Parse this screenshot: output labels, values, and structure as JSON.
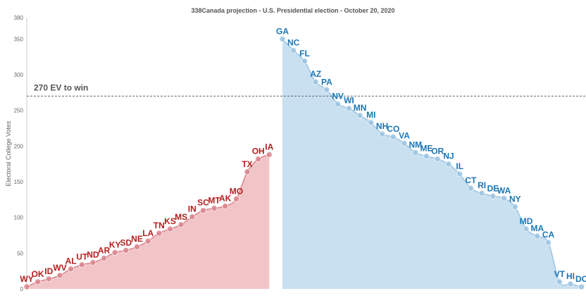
{
  "chart_data": {
    "type": "area",
    "title": "338Canada projection - U.S. Presidential election - October 20, 2020",
    "ylabel": "Electoral College Votes",
    "ylim": [
      0,
      380
    ],
    "yticks": [
      0,
      50,
      100,
      150,
      200,
      250,
      300,
      350
    ],
    "grid": false,
    "threshold": {
      "value": 270,
      "label": "270 EV to win"
    },
    "colors": {
      "rep_line": "#d9848c",
      "rep_fill": "#f1c5c8",
      "rep_label": "#b41e1e",
      "dem_line": "#9cc4e2",
      "dem_fill": "#c9e0f0",
      "dem_label": "#1976b6",
      "threshold": "#666666"
    },
    "series": [
      {
        "party": "republican",
        "states": [
          "WY",
          "OK",
          "ID",
          "WV",
          "AL",
          "UT",
          "ND",
          "AR",
          "KY",
          "SD",
          "NE",
          "LA",
          "TN",
          "KS",
          "MS",
          "IN",
          "SC",
          "MT",
          "AK",
          "MO",
          "TX",
          "OH",
          "IA"
        ],
        "values": [
          3,
          10,
          14,
          19,
          28,
          34,
          37,
          43,
          51,
          54,
          59,
          67,
          78,
          84,
          90,
          101,
          110,
          113,
          116,
          126,
          164,
          182,
          188
        ]
      },
      {
        "party": "democratic",
        "states": [
          "GA",
          "NC",
          "FL",
          "AZ",
          "PA",
          "NV",
          "WI",
          "MN",
          "MI",
          "NH",
          "CO",
          "VA",
          "NM",
          "ME",
          "OR",
          "NJ",
          "IL",
          "CT",
          "RI",
          "DE",
          "WA",
          "NY",
          "MD",
          "MA",
          "CA",
          "VT",
          "HI",
          "DC"
        ],
        "values": [
          350,
          334,
          319,
          290,
          279,
          259,
          253,
          243,
          233,
          217,
          213,
          204,
          191,
          186,
          182,
          175,
          161,
          141,
          134,
          130,
          127,
          115,
          84,
          74,
          65,
          10,
          7,
          3
        ]
      }
    ]
  }
}
